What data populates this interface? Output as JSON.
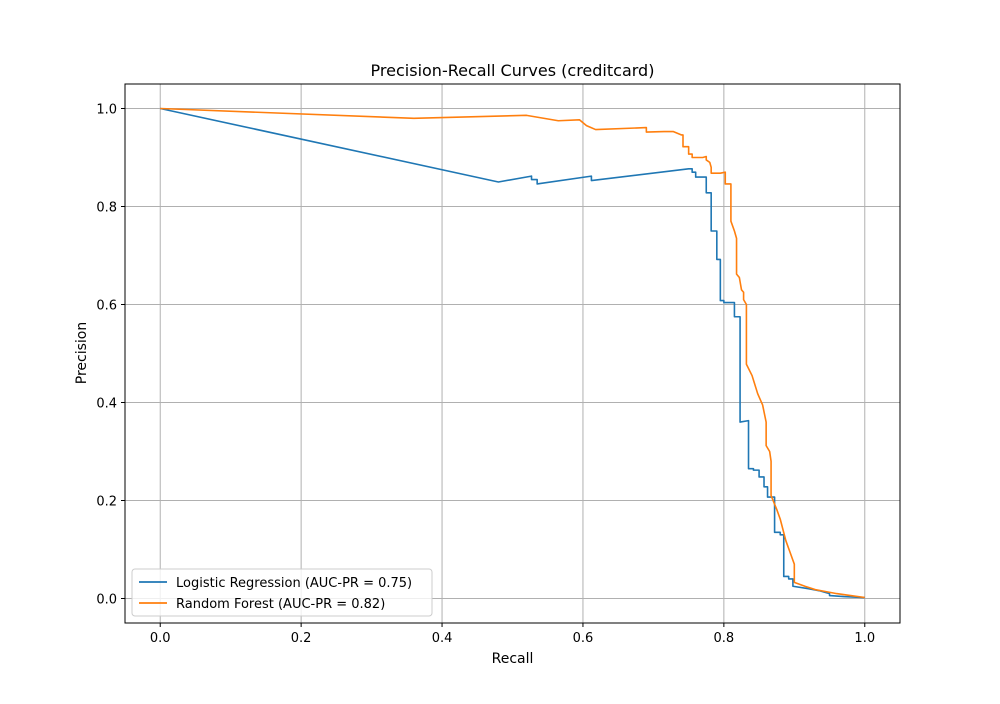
{
  "chart_data": {
    "type": "line",
    "title": "Precision-Recall Curves (creditcard)",
    "xlabel": "Recall",
    "ylabel": "Precision",
    "xlim": [
      -0.05,
      1.05
    ],
    "ylim": [
      -0.05,
      1.05
    ],
    "xticks": [
      0.0,
      0.2,
      0.4,
      0.6,
      0.8,
      1.0
    ],
    "yticks": [
      0.0,
      0.2,
      0.4,
      0.6,
      0.8,
      1.0
    ],
    "xtick_labels": [
      "0.0",
      "0.2",
      "0.4",
      "0.6",
      "0.8",
      "1.0"
    ],
    "ytick_labels": [
      "0.0",
      "0.2",
      "0.4",
      "0.6",
      "0.8",
      "1.0"
    ],
    "grid": true,
    "legend_position": "lower-left",
    "series": [
      {
        "name": "Logistic Regression (AUC-PR = 0.75)",
        "color": "#1f77b4",
        "points": [
          [
            0.0,
            1.0
          ],
          [
            0.48,
            0.85
          ],
          [
            0.527,
            0.862
          ],
          [
            0.527,
            0.855
          ],
          [
            0.535,
            0.855
          ],
          [
            0.535,
            0.846
          ],
          [
            0.612,
            0.862
          ],
          [
            0.612,
            0.853
          ],
          [
            0.75,
            0.877
          ],
          [
            0.755,
            0.877
          ],
          [
            0.755,
            0.87
          ],
          [
            0.76,
            0.87
          ],
          [
            0.76,
            0.86
          ],
          [
            0.775,
            0.86
          ],
          [
            0.775,
            0.828
          ],
          [
            0.782,
            0.828
          ],
          [
            0.782,
            0.75
          ],
          [
            0.79,
            0.75
          ],
          [
            0.79,
            0.692
          ],
          [
            0.795,
            0.692
          ],
          [
            0.795,
            0.608
          ],
          [
            0.8,
            0.608
          ],
          [
            0.8,
            0.604
          ],
          [
            0.815,
            0.604
          ],
          [
            0.815,
            0.575
          ],
          [
            0.823,
            0.575
          ],
          [
            0.823,
            0.36
          ],
          [
            0.835,
            0.363
          ],
          [
            0.835,
            0.265
          ],
          [
            0.842,
            0.265
          ],
          [
            0.842,
            0.262
          ],
          [
            0.85,
            0.262
          ],
          [
            0.85,
            0.248
          ],
          [
            0.857,
            0.248
          ],
          [
            0.857,
            0.228
          ],
          [
            0.862,
            0.228
          ],
          [
            0.862,
            0.207
          ],
          [
            0.872,
            0.207
          ],
          [
            0.872,
            0.135
          ],
          [
            0.88,
            0.135
          ],
          [
            0.88,
            0.13
          ],
          [
            0.885,
            0.13
          ],
          [
            0.885,
            0.045
          ],
          [
            0.892,
            0.045
          ],
          [
            0.892,
            0.04
          ],
          [
            0.898,
            0.04
          ],
          [
            0.898,
            0.025
          ],
          [
            0.92,
            0.02
          ],
          [
            0.935,
            0.016
          ],
          [
            0.945,
            0.012
          ],
          [
            0.95,
            0.01
          ],
          [
            0.95,
            0.006
          ],
          [
            0.97,
            0.004
          ],
          [
            1.0,
            0.002
          ]
        ]
      },
      {
        "name": "Random Forest (AUC-PR = 0.82)",
        "color": "#ff7f0e",
        "points": [
          [
            0.0,
            1.0
          ],
          [
            0.36,
            0.98
          ],
          [
            0.52,
            0.986
          ],
          [
            0.565,
            0.975
          ],
          [
            0.595,
            0.977
          ],
          [
            0.605,
            0.965
          ],
          [
            0.618,
            0.957
          ],
          [
            0.69,
            0.961
          ],
          [
            0.69,
            0.952
          ],
          [
            0.715,
            0.953
          ],
          [
            0.728,
            0.953
          ],
          [
            0.74,
            0.946
          ],
          [
            0.742,
            0.946
          ],
          [
            0.742,
            0.922
          ],
          [
            0.75,
            0.922
          ],
          [
            0.75,
            0.907
          ],
          [
            0.755,
            0.907
          ],
          [
            0.755,
            0.9
          ],
          [
            0.77,
            0.9
          ],
          [
            0.775,
            0.902
          ],
          [
            0.775,
            0.895
          ],
          [
            0.78,
            0.89
          ],
          [
            0.782,
            0.88
          ],
          [
            0.782,
            0.868
          ],
          [
            0.795,
            0.868
          ],
          [
            0.802,
            0.87
          ],
          [
            0.802,
            0.846
          ],
          [
            0.81,
            0.846
          ],
          [
            0.81,
            0.77
          ],
          [
            0.815,
            0.75
          ],
          [
            0.818,
            0.735
          ],
          [
            0.818,
            0.662
          ],
          [
            0.822,
            0.655
          ],
          [
            0.825,
            0.63
          ],
          [
            0.828,
            0.625
          ],
          [
            0.828,
            0.61
          ],
          [
            0.832,
            0.6
          ],
          [
            0.832,
            0.478
          ],
          [
            0.84,
            0.455
          ],
          [
            0.848,
            0.418
          ],
          [
            0.855,
            0.395
          ],
          [
            0.86,
            0.36
          ],
          [
            0.86,
            0.312
          ],
          [
            0.865,
            0.3
          ],
          [
            0.867,
            0.28
          ],
          [
            0.867,
            0.21
          ],
          [
            0.875,
            0.182
          ],
          [
            0.88,
            0.162
          ],
          [
            0.888,
            0.118
          ],
          [
            0.895,
            0.09
          ],
          [
            0.9,
            0.07
          ],
          [
            0.9,
            0.033
          ],
          [
            0.915,
            0.025
          ],
          [
            0.93,
            0.018
          ],
          [
            0.945,
            0.014
          ],
          [
            0.96,
            0.01
          ],
          [
            0.98,
            0.006
          ],
          [
            1.0,
            0.002
          ]
        ]
      }
    ]
  }
}
